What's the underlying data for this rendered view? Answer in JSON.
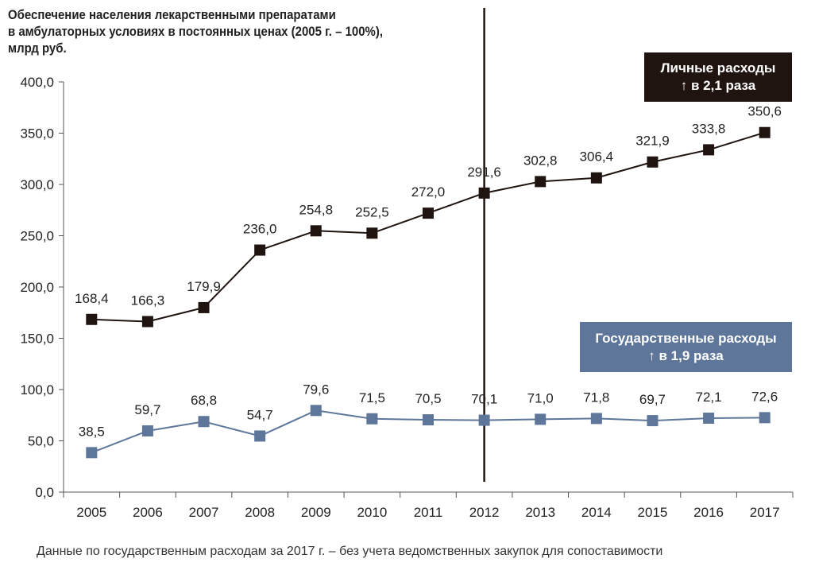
{
  "title_lines": [
    "Обеспечение населения лекарственными препаратами",
    "в амбулаторных условиях в постоянных ценах (2005 г. – 100%),",
    "млрд руб."
  ],
  "chart_data": {
    "type": "line",
    "title": "Обеспечение населения лекарственными препаратами в амбулаторных условиях в постоянных ценах (2005 г. – 100%), млрд руб.",
    "categories": [
      "2005",
      "2006",
      "2007",
      "2008",
      "2009",
      "2010",
      "2011",
      "2012",
      "2013",
      "2014",
      "2015",
      "2016",
      "2017"
    ],
    "y_ticks": [
      "0,0",
      "50,0",
      "100,0",
      "150,0",
      "200,0",
      "250,0",
      "300,0",
      "350,0",
      "400,0"
    ],
    "ylim": [
      0,
      400
    ],
    "grid": false,
    "marker_line_year": "2012",
    "series": [
      {
        "key": "private",
        "values": [
          168.4,
          166.3,
          179.9,
          236.0,
          254.8,
          252.5,
          272.0,
          291.6,
          302.8,
          306.4,
          321.9,
          333.8,
          350.6
        ],
        "labels": [
          "168,4",
          "166,3",
          "179,9",
          "236,0",
          "254,8",
          "252,5",
          "272,0",
          "291,6",
          "302,8",
          "306,4",
          "321,9",
          "333,8",
          "350,6"
        ],
        "color": "#1f1410"
      },
      {
        "key": "public",
        "values": [
          38.5,
          59.7,
          68.8,
          54.7,
          79.6,
          71.5,
          70.5,
          70.1,
          71.0,
          71.8,
          69.7,
          72.1,
          72.6
        ],
        "labels": [
          "38,5",
          "59,7",
          "68,8",
          "54,7",
          "79,6",
          "71,5",
          "70,5",
          "70,1",
          "71,0",
          "71,8",
          "69,7",
          "72,1",
          "72,6"
        ],
        "color": "#5d769a"
      }
    ]
  },
  "callouts": {
    "private": {
      "line1": "Личные расходы",
      "line2": "↑ в 2,1 раза",
      "color": "#1f1410"
    },
    "public": {
      "line1": "Государственные расходы",
      "line2": "↑ в 1,9 раза",
      "color": "#5d769a"
    }
  },
  "footnote": "Данные по государственным расходам за 2017 г. – без учета ведомственных закупок для сопоставимости"
}
